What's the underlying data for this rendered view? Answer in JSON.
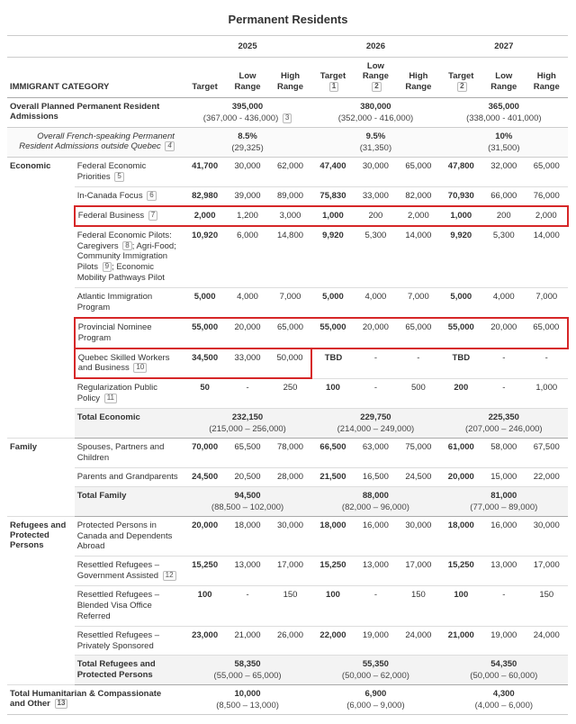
{
  "title": "Permanent Residents",
  "header": {
    "category_label": "IMMIGRANT CATEGORY",
    "years": [
      "2025",
      "2026",
      "2027"
    ],
    "cols": [
      "Target",
      "Low Range",
      "High Range"
    ],
    "target_fn": [
      "",
      "1",
      "2"
    ],
    "low_fn": [
      "",
      "2",
      ""
    ]
  },
  "overall": {
    "label": "Overall Planned Permanent Resident Admissions",
    "y": [
      {
        "t": "395,000",
        "r": "(367,000 - 436,000)",
        "fn": "3"
      },
      {
        "t": "380,000",
        "r": "(352,000 - 416,000)"
      },
      {
        "t": "365,000",
        "r": "(338,000 - 401,000)"
      }
    ]
  },
  "french": {
    "label": "Overall French-speaking Permanent Resident Admissions outside Quebec",
    "fn": "4",
    "y": [
      {
        "t": "8.5%",
        "r": "(29,325)"
      },
      {
        "t": "9.5%",
        "r": "(31,350)"
      },
      {
        "t": "10%",
        "r": "(31,500)"
      }
    ]
  },
  "groups": [
    {
      "name": "Economic",
      "rows": [
        {
          "label": "Federal Economic Priorities",
          "fn": "5",
          "v": [
            "41,700",
            "30,000",
            "62,000",
            "47,400",
            "30,000",
            "65,000",
            "47,800",
            "32,000",
            "65,000"
          ]
        },
        {
          "label": "In-Canada Focus",
          "fn": "6",
          "v": [
            "82,980",
            "39,000",
            "89,000",
            "75,830",
            "33,000",
            "82,000",
            "70,930",
            "66,000",
            "76,000"
          ]
        },
        {
          "label": "Federal Business",
          "fn": "7",
          "red": "full",
          "v": [
            "2,000",
            "1,200",
            "3,000",
            "1,000",
            "200",
            "2,000",
            "1,000",
            "200",
            "2,000"
          ]
        },
        {
          "label": "Federal Economic Pilots: Caregivers",
          "extra": "; Agri-Food; Community Immigration Pilots",
          "fn2": "9",
          "extra2": "; Economic Mobility Pathways Pilot",
          "fn": "8",
          "v": [
            "10,920",
            "6,000",
            "14,800",
            "9,920",
            "5,300",
            "14,000",
            "9,920",
            "5,300",
            "14,000"
          ]
        },
        {
          "label": "Atlantic Immigration Program",
          "v": [
            "5,000",
            "4,000",
            "7,000",
            "5,000",
            "4,000",
            "7,000",
            "5,000",
            "4,000",
            "7,000"
          ]
        },
        {
          "label": "Provincial Nominee Program",
          "red": "full",
          "v": [
            "55,000",
            "20,000",
            "65,000",
            "55,000",
            "20,000",
            "65,000",
            "55,000",
            "20,000",
            "65,000"
          ]
        },
        {
          "label": "Quebec Skilled Workers and Business",
          "fn": "10",
          "red": "partial",
          "v": [
            "34,500",
            "33,000",
            "50,000",
            "TBD",
            "-",
            "-",
            "TBD",
            "-",
            "-"
          ]
        },
        {
          "label": "Regularization Public Policy",
          "fn": "11",
          "v": [
            "50",
            "-",
            "250",
            "100",
            "-",
            "500",
            "200",
            "-",
            "1,000"
          ]
        }
      ],
      "total": {
        "label": "Total Economic",
        "y": [
          {
            "t": "232,150",
            "r": "(215,000 – 256,000)"
          },
          {
            "t": "229,750",
            "r": "(214,000 – 249,000)"
          },
          {
            "t": "225,350",
            "r": "(207,000 – 246,000)"
          }
        ]
      }
    },
    {
      "name": "Family",
      "rows": [
        {
          "label": "Spouses, Partners and Children",
          "v": [
            "70,000",
            "65,500",
            "78,000",
            "66,500",
            "63,000",
            "75,000",
            "61,000",
            "58,000",
            "67,500"
          ]
        },
        {
          "label": "Parents and Grandparents",
          "v": [
            "24,500",
            "20,500",
            "28,000",
            "21,500",
            "16,500",
            "24,500",
            "20,000",
            "15,000",
            "22,000"
          ]
        }
      ],
      "total": {
        "label": "Total Family",
        "y": [
          {
            "t": "94,500",
            "r": "(88,500 – 102,000)"
          },
          {
            "t": "88,000",
            "r": "(82,000 – 96,000)"
          },
          {
            "t": "81,000",
            "r": "(77,000 – 89,000)"
          }
        ]
      }
    },
    {
      "name": "Refugees and Protected Persons",
      "rows": [
        {
          "label": "Protected Persons in Canada and Dependents Abroad",
          "v": [
            "20,000",
            "18,000",
            "30,000",
            "18,000",
            "16,000",
            "30,000",
            "18,000",
            "16,000",
            "30,000"
          ]
        },
        {
          "label": "Resettled Refugees – Government Assisted",
          "fn": "12",
          "v": [
            "15,250",
            "13,000",
            "17,000",
            "15,250",
            "13,000",
            "17,000",
            "15,250",
            "13,000",
            "17,000"
          ]
        },
        {
          "label": "Resettled Refugees – Blended Visa Office Referred",
          "v": [
            "100",
            "-",
            "150",
            "100",
            "-",
            "150",
            "100",
            "-",
            "150"
          ]
        },
        {
          "label": "Resettled Refugees – Privately Sponsored",
          "v": [
            "23,000",
            "21,000",
            "26,000",
            "22,000",
            "19,000",
            "24,000",
            "21,000",
            "19,000",
            "24,000"
          ]
        }
      ],
      "total": {
        "label": "Total Refugees and Protected Persons",
        "y": [
          {
            "t": "58,350",
            "r": "(55,000 – 65,000)"
          },
          {
            "t": "55,350",
            "r": "(50,000 – 62,000)"
          },
          {
            "t": "54,350",
            "r": "(50,000 – 60,000)"
          }
        ]
      }
    }
  ],
  "footer": {
    "label": "Total Humanitarian & Compassionate and Other",
    "fn": "13",
    "y": [
      {
        "t": "10,000",
        "r": "(8,500 – 13,000)"
      },
      {
        "t": "6,900",
        "r": "(6,000 – 9,000)"
      },
      {
        "t": "4,300",
        "r": "(4,000 – 6,000)"
      }
    ]
  }
}
